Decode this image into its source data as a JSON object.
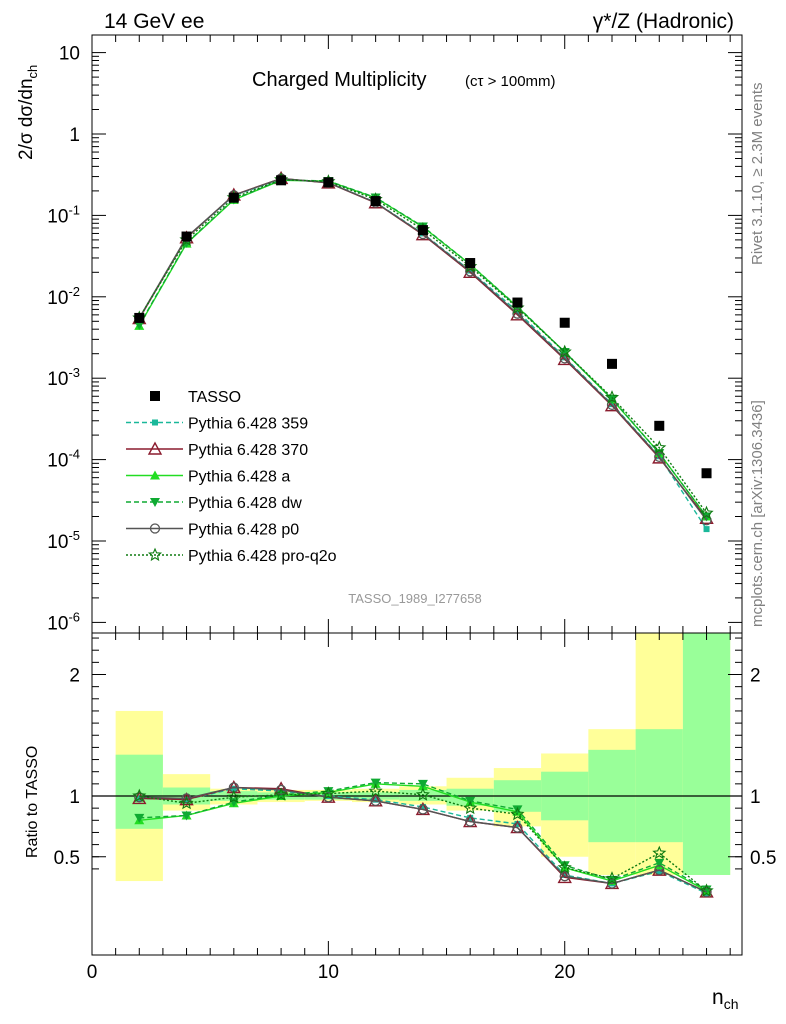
{
  "header": {
    "left": "14 GeV ee",
    "right": "γ*/Z (Hadronic)",
    "side_top": "Rivet 3.1.10, ≥ 2.3M events",
    "side_bottom": "mcplots.cern.ch [arXiv:1306.3436]"
  },
  "chart_data": {
    "type": "line",
    "title": "Charged Multiplicity",
    "title_suffix": "(cτ > 100mm)",
    "analysis_label": "TASSO_1989_I277658",
    "xlabel": "n",
    "xlabel_sub": "ch",
    "ylabel_main": "2/σ dσ/dn",
    "ylabel_main_sub": "ch",
    "ylabel_ratio": "Ratio to TASSO",
    "xlim": [
      0,
      27.5
    ],
    "ylim_main": [
      5e-07,
      20
    ],
    "ylog_main": true,
    "ylim_ratio": [
      0.35,
      2.4
    ],
    "legend_position": "middle-left",
    "x_ticks": [
      "0",
      "10",
      "20"
    ],
    "y_ticks_main": [
      "10",
      "1",
      "10^-1",
      "10^-2",
      "10^-3",
      "10^-4",
      "10^-5",
      "10^-6"
    ],
    "y_ticks_ratio": [
      "2",
      "1",
      "0.5"
    ],
    "reference": {
      "name": "TASSO",
      "color": "#000000",
      "x": [
        2,
        4,
        6,
        8,
        10,
        12,
        14,
        16,
        18,
        20,
        22,
        24,
        26
      ],
      "y": [
        0.0055,
        0.055,
        0.165,
        0.27,
        0.255,
        0.15,
        0.066,
        0.026,
        0.0085,
        0.0048,
        0.0015,
        0.00026,
        6.8e-05
      ]
    },
    "bands": [
      {
        "x0": 1,
        "x1": 3,
        "inner": [
          0.73,
          1.34
        ],
        "outer": [
          0.3,
          1.7
        ]
      },
      {
        "x0": 3,
        "x1": 5,
        "inner": [
          0.93,
          1.07
        ],
        "outer": [
          0.88,
          1.18
        ]
      },
      {
        "x0": 5,
        "x1": 7,
        "inner": [
          0.96,
          1.04
        ],
        "outer": [
          0.93,
          1.06
        ]
      },
      {
        "x0": 7,
        "x1": 9,
        "inner": [
          0.97,
          1.03
        ],
        "outer": [
          0.95,
          1.05
        ]
      },
      {
        "x0": 9,
        "x1": 11,
        "inner": [
          0.97,
          1.03
        ],
        "outer": [
          0.96,
          1.05
        ]
      },
      {
        "x0": 11,
        "x1": 13,
        "inner": [
          0.97,
          1.03
        ],
        "outer": [
          0.95,
          1.06
        ]
      },
      {
        "x0": 13,
        "x1": 15,
        "inner": [
          0.96,
          1.05
        ],
        "outer": [
          0.93,
          1.08
        ]
      },
      {
        "x0": 15,
        "x1": 17,
        "inner": [
          0.92,
          1.06
        ],
        "outer": [
          0.88,
          1.15
        ]
      },
      {
        "x0": 17,
        "x1": 19,
        "inner": [
          0.87,
          1.13
        ],
        "outer": [
          0.75,
          1.23
        ]
      },
      {
        "x0": 19,
        "x1": 21,
        "inner": [
          0.8,
          1.2
        ],
        "outer": [
          0.5,
          1.35
        ]
      },
      {
        "x0": 21,
        "x1": 23,
        "inner": [
          0.62,
          1.38
        ],
        "outer": [
          0.35,
          1.55
        ]
      },
      {
        "x0": 23,
        "x1": 25,
        "inner": [
          0.62,
          1.55
        ],
        "outer": [
          0.35,
          2.4
        ]
      },
      {
        "x0": 25,
        "x1": 27,
        "inner": [
          0.35,
          2.4
        ],
        "outer": [
          0.35,
          2.4
        ]
      }
    ],
    "series": [
      {
        "name": "Pythia 6.428 359",
        "color": "#1ab89a",
        "dash": "5,3",
        "marker": "square",
        "x": [
          2,
          4,
          6,
          8,
          10,
          12,
          14,
          16,
          18,
          20,
          22,
          24,
          26
        ],
        "y": [
          0.0054,
          0.053,
          0.175,
          0.28,
          0.253,
          0.145,
          0.06,
          0.021,
          0.0066,
          0.0018,
          0.00048,
          0.00011,
          1.4e-05
        ],
        "ratio": [
          0.98,
          0.97,
          1.06,
          1.04,
          1.0,
          0.97,
          0.91,
          0.82,
          0.77,
          0.35,
          0.28,
          0.38,
          0.2
        ]
      },
      {
        "name": "Pythia 6.428 370",
        "color": "#8b1c2e",
        "dash": "",
        "marker": "triangle-open",
        "x": [
          2,
          4,
          6,
          8,
          10,
          12,
          14,
          16,
          18,
          20,
          22,
          24,
          26
        ],
        "y": [
          0.0054,
          0.053,
          0.178,
          0.285,
          0.251,
          0.143,
          0.058,
          0.02,
          0.006,
          0.0017,
          0.00046,
          0.000105,
          1.9e-05
        ],
        "ratio": [
          0.98,
          0.97,
          1.07,
          1.06,
          0.99,
          0.96,
          0.89,
          0.79,
          0.74,
          0.33,
          0.28,
          0.39,
          0.21
        ]
      },
      {
        "name": "Pythia 6.428 a",
        "color": "#22dd22",
        "dash": "",
        "marker": "triangle-up",
        "x": [
          2,
          4,
          6,
          8,
          10,
          12,
          14,
          16,
          18,
          20,
          22,
          24,
          26
        ],
        "y": [
          0.0044,
          0.045,
          0.155,
          0.27,
          0.263,
          0.165,
          0.072,
          0.025,
          0.0075,
          0.0021,
          0.00055,
          0.00012,
          2e-05
        ],
        "ratio": [
          0.8,
          0.84,
          0.94,
          1.0,
          1.03,
          1.1,
          1.08,
          0.95,
          0.87,
          0.41,
          0.3,
          0.43,
          0.22
        ]
      },
      {
        "name": "Pythia 6.428 dw",
        "color": "#0faa32",
        "dash": "5,3",
        "marker": "triangle-down",
        "x": [
          2,
          4,
          6,
          8,
          10,
          12,
          14,
          16,
          18,
          20,
          22,
          24,
          26
        ],
        "y": [
          0.0045,
          0.046,
          0.157,
          0.272,
          0.265,
          0.166,
          0.073,
          0.025,
          0.0076,
          0.0021,
          0.00056,
          0.00012,
          2e-05
        ],
        "ratio": [
          0.82,
          0.84,
          0.95,
          1.01,
          1.04,
          1.11,
          1.1,
          0.96,
          0.89,
          0.43,
          0.31,
          0.45,
          0.23
        ]
      },
      {
        "name": "Pythia 6.428 p0",
        "color": "#555555",
        "dash": "",
        "marker": "circle-open",
        "x": [
          2,
          4,
          6,
          8,
          10,
          12,
          14,
          16,
          18,
          20,
          22,
          24,
          26
        ],
        "y": [
          0.0055,
          0.054,
          0.177,
          0.284,
          0.252,
          0.144,
          0.059,
          0.0205,
          0.0062,
          0.00175,
          0.00047,
          0.000108,
          1.8e-05
        ],
        "ratio": [
          0.99,
          0.98,
          1.07,
          1.05,
          0.99,
          0.96,
          0.89,
          0.79,
          0.74,
          0.34,
          0.28,
          0.39,
          0.21
        ]
      },
      {
        "name": "Pythia 6.428 pro-q2o",
        "color": "#0e7a10",
        "dash": "2,2",
        "marker": "star-open",
        "x": [
          2,
          4,
          6,
          8,
          10,
          12,
          14,
          16,
          18,
          20,
          22,
          24,
          26
        ],
        "y": [
          0.0055,
          0.05,
          0.165,
          0.275,
          0.26,
          0.157,
          0.067,
          0.0235,
          0.0073,
          0.0021,
          0.00058,
          0.00014,
          2.2e-05
        ],
        "ratio": [
          1.0,
          0.94,
          0.99,
          1.01,
          1.02,
          1.04,
          1.01,
          0.9,
          0.85,
          0.41,
          0.32,
          0.53,
          0.22
        ]
      }
    ]
  }
}
